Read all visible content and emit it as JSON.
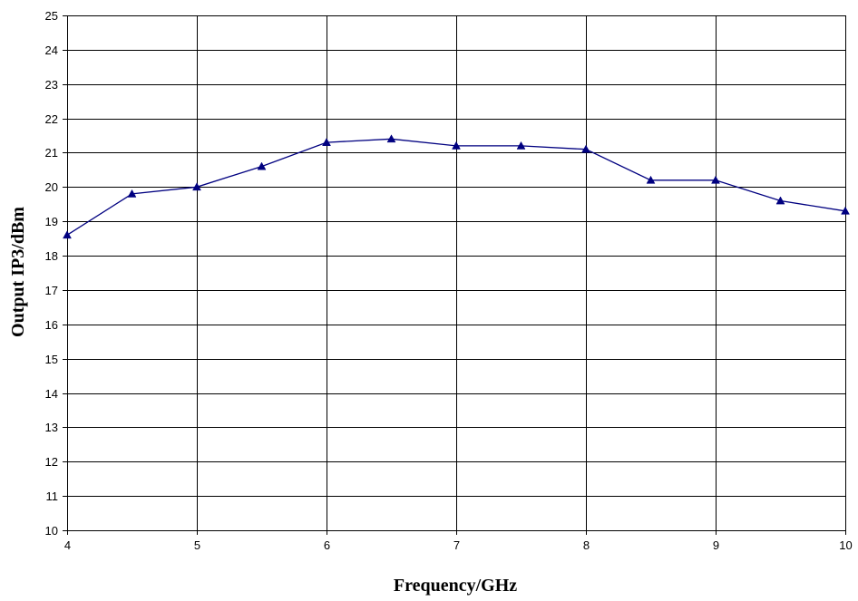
{
  "chart_data": {
    "type": "line",
    "xlabel": "Frequency/GHz",
    "ylabel": "Output IP3/dBm",
    "xlim": [
      4,
      10
    ],
    "ylim": [
      10,
      25
    ],
    "x_ticks": [
      4,
      5,
      6,
      7,
      8,
      9,
      10
    ],
    "y_ticks": [
      10,
      11,
      12,
      13,
      14,
      15,
      16,
      17,
      18,
      19,
      20,
      21,
      22,
      23,
      24,
      25
    ],
    "grid": true,
    "legend": "none",
    "series": [
      {
        "marker": "triangle",
        "color": "#000080",
        "x": [
          4,
          4.5,
          5,
          5.5,
          6,
          6.5,
          7,
          7.5,
          8,
          8.5,
          9,
          9.5,
          10
        ],
        "y": [
          18.6,
          19.8,
          20.0,
          20.6,
          21.3,
          21.4,
          21.2,
          21.2,
          21.1,
          20.2,
          20.2,
          19.6,
          19.3
        ]
      }
    ]
  }
}
